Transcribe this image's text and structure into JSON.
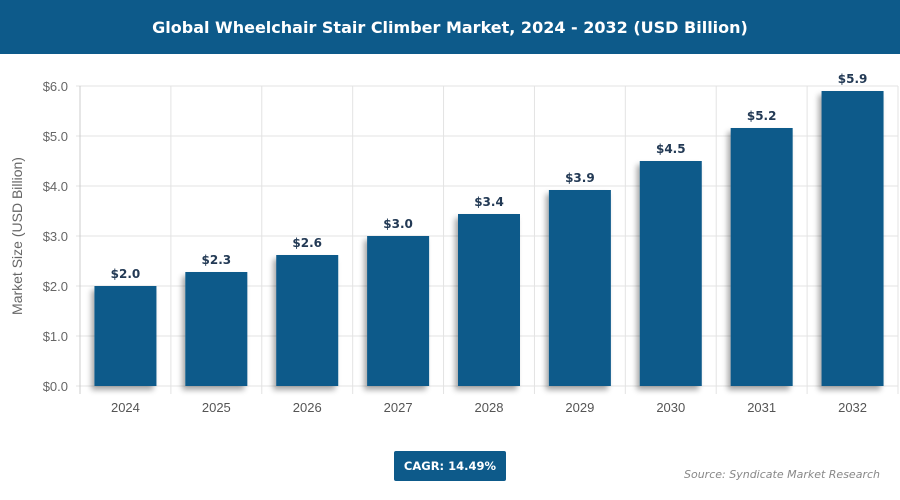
{
  "chart_data": {
    "type": "bar",
    "title": "Global Wheelchair Stair Climber Market, 2024 - 2032 (USD Billion)",
    "xlabel": "",
    "ylabel": "Market Size (USD Billion)",
    "categories": [
      "2024",
      "2025",
      "2026",
      "2027",
      "2028",
      "2029",
      "2030",
      "2031",
      "2032"
    ],
    "values": [
      2.0,
      2.28,
      2.62,
      3.0,
      3.44,
      3.92,
      4.5,
      5.16,
      5.9
    ],
    "data_labels": [
      "$2.0",
      "$2.3",
      "$2.6",
      "$3.0",
      "$3.4",
      "$3.9",
      "$4.5",
      "$5.2",
      "$5.9"
    ],
    "ylim": [
      0,
      6
    ],
    "yticks": [
      "$0.0",
      "$1.0",
      "$2.0",
      "$3.0",
      "$4.0",
      "$5.0",
      "$6.0"
    ],
    "grid": true,
    "bar_color": "#0d5a8a",
    "title_bar_color": "#0d5a8a"
  },
  "footer": {
    "cagr": "CAGR: 14.49%",
    "source": "Source: Syndicate Market Research"
  }
}
